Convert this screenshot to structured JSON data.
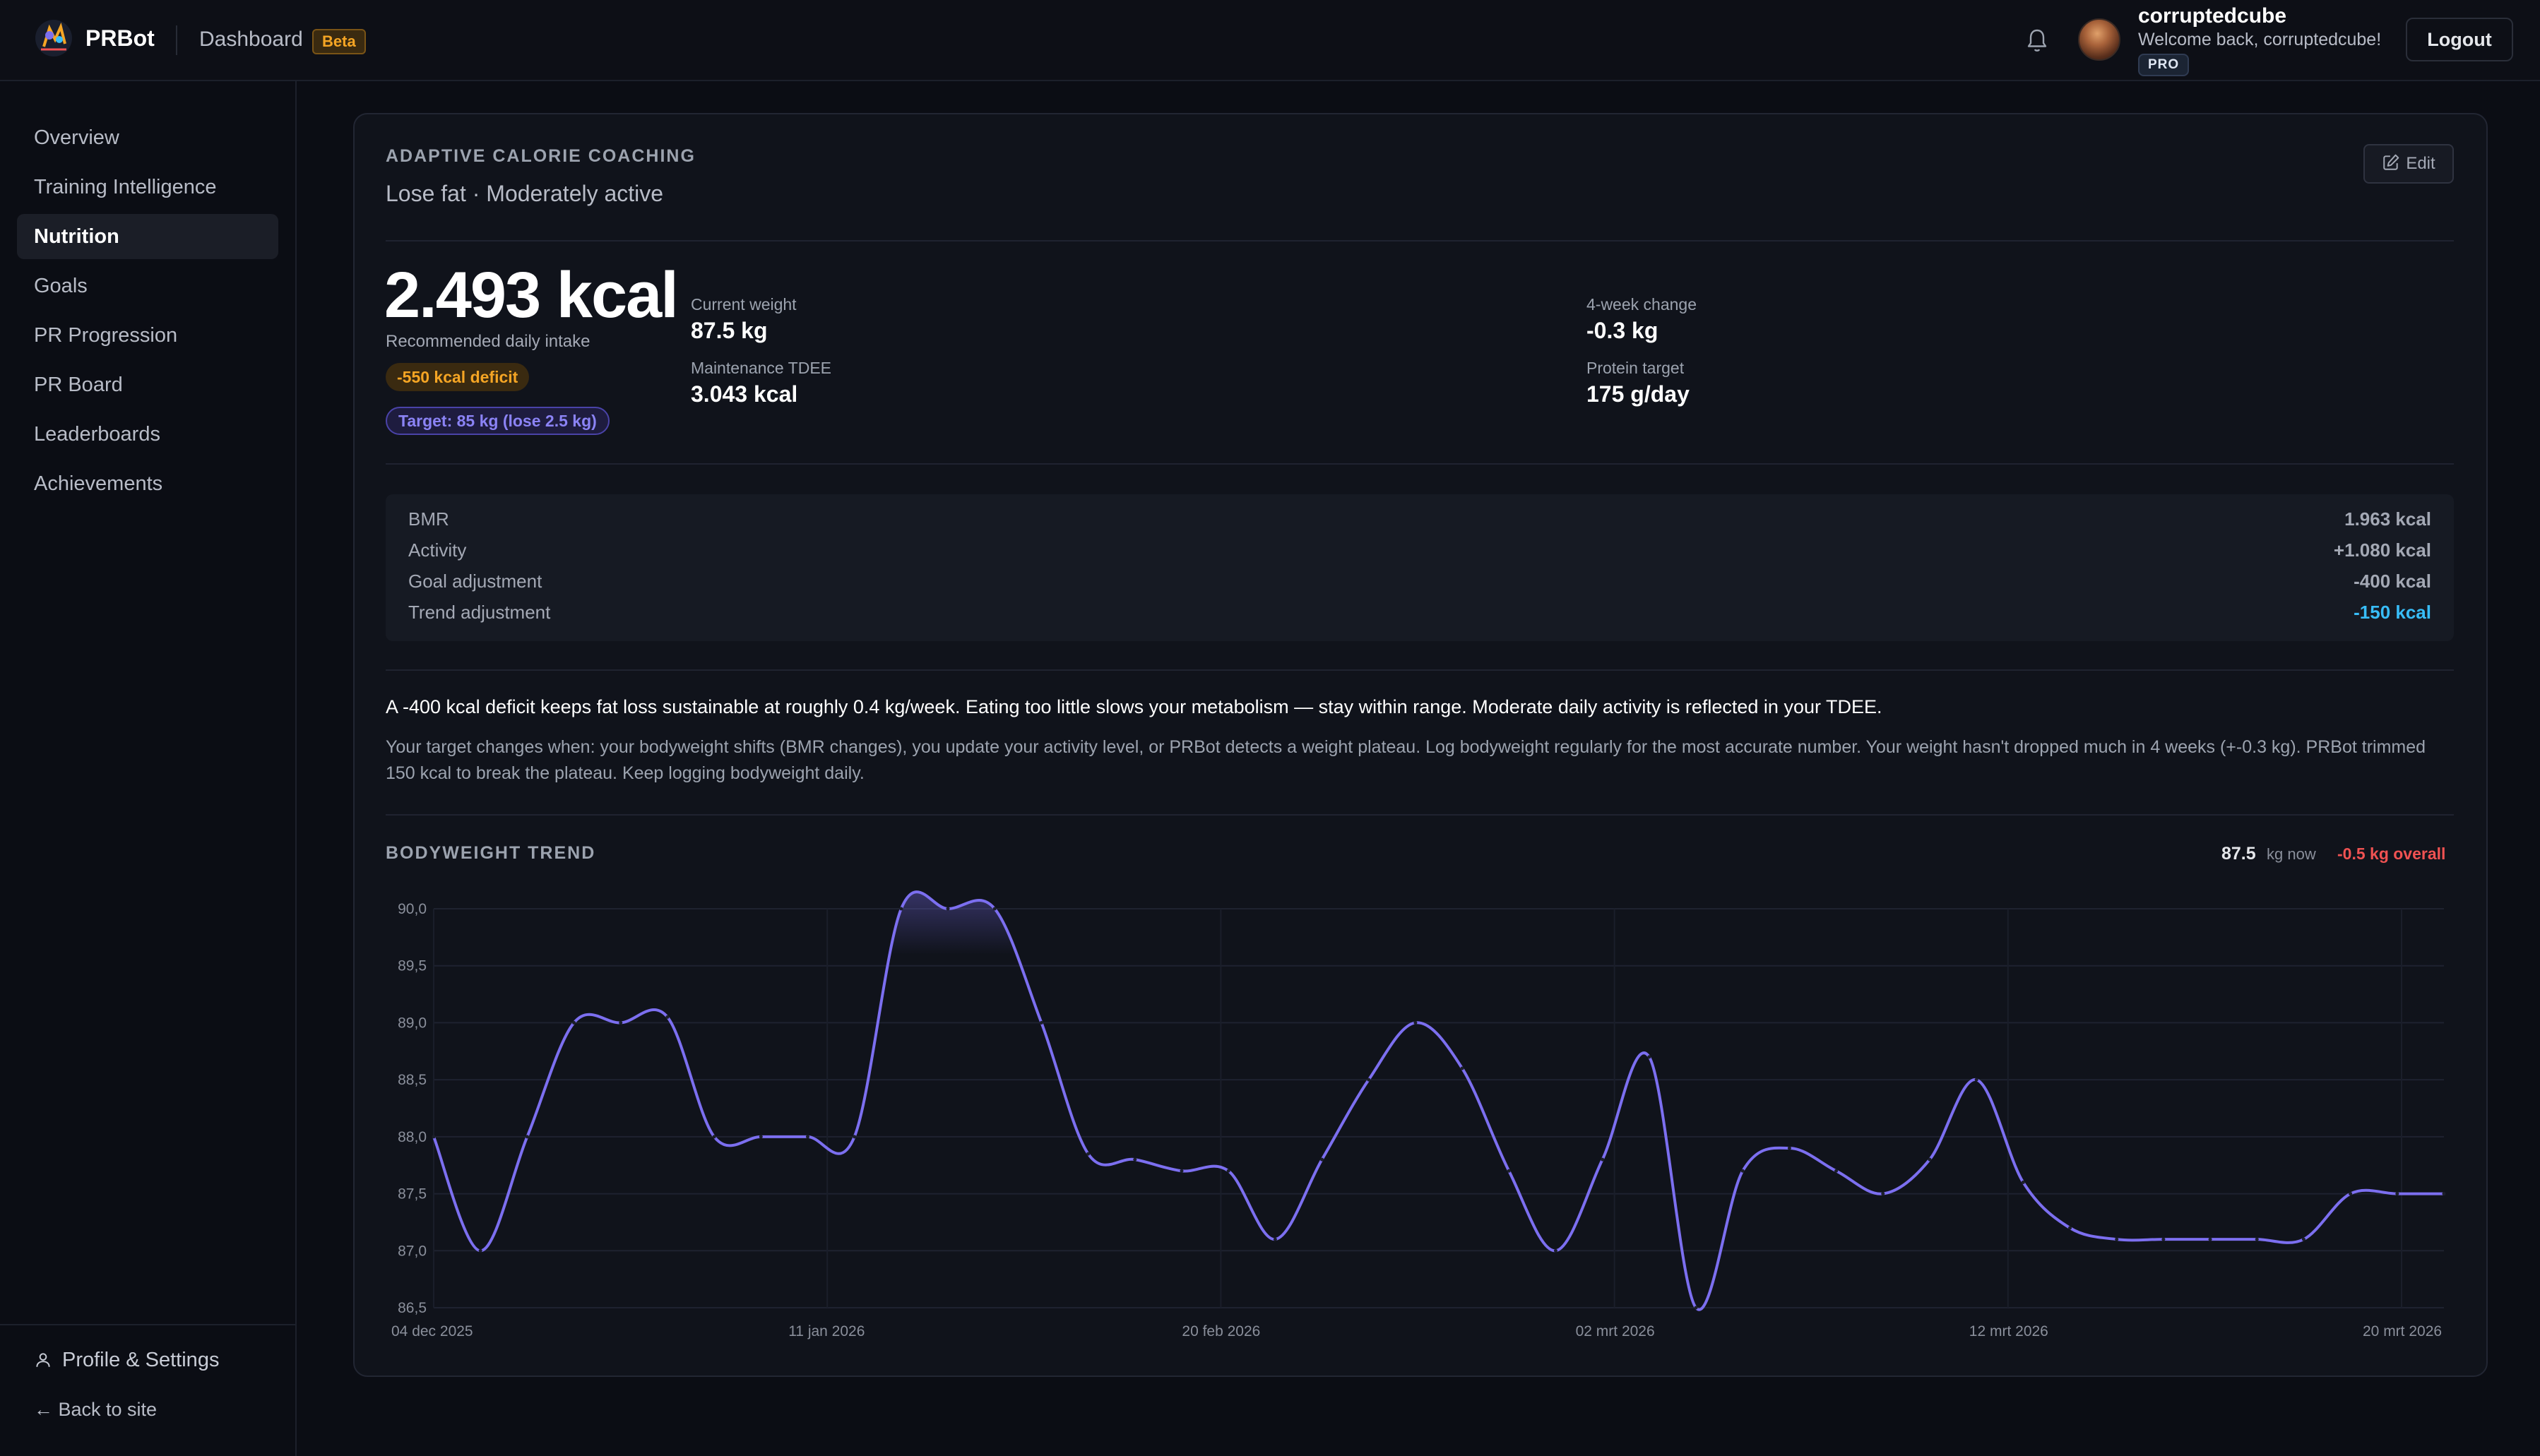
{
  "header": {
    "brand": "PRBot",
    "section": "Dashboard",
    "badge": "Beta",
    "user_name": "corruptedcube",
    "welcome": "Welcome back, corruptedcube!",
    "plan": "PRO",
    "logout_label": "Logout"
  },
  "sidebar": {
    "items": [
      {
        "label": "Overview"
      },
      {
        "label": "Training Intelligence"
      },
      {
        "label": "Nutrition",
        "active": true
      },
      {
        "label": "Goals"
      },
      {
        "label": "PR Progression"
      },
      {
        "label": "PR Board"
      },
      {
        "label": "Leaderboards"
      },
      {
        "label": "Achievements"
      }
    ],
    "profile_label": "Profile & Settings",
    "back_label": "← Back to site"
  },
  "coaching": {
    "eyebrow": "ADAPTIVE CALORIE COACHING",
    "subtitle": "Lose fat · Moderately active",
    "edit_label": "Edit",
    "recommended_kcal": "2.493 kcal",
    "recommended_label": "Recommended daily intake",
    "deficit_badge": "-550 kcal deficit",
    "target_badge": "Target: 85 kg (lose 2.5 kg)",
    "stats": {
      "current_weight_label": "Current weight",
      "current_weight": "87.5 kg",
      "tdee_label": "Maintenance TDEE",
      "tdee": "3.043 kcal",
      "change_label": "4-week change",
      "change": "-0.3 kg",
      "protein_label": "Protein target",
      "protein": "175 g/day"
    },
    "breakdown": [
      {
        "label": "BMR",
        "value": "1.963 kcal"
      },
      {
        "label": "Activity",
        "value": "+1.080 kcal"
      },
      {
        "label": "Goal adjustment",
        "value": "-400 kcal"
      },
      {
        "label": "Trend adjustment",
        "value": "-150 kcal",
        "accent": true
      }
    ],
    "explanation": "A -400 kcal deficit keeps fat loss sustainable at roughly 0.4 kg/week. Eating too little slows your metabolism — stay within range. Moderate daily activity is reflected in your TDEE.",
    "explanation_detail": "Your target changes when: your bodyweight shifts (BMR changes), you update your activity level, or PRBot detects a weight plateau. Log bodyweight regularly for the most accurate number. Your weight hasn't dropped much in 4 weeks (+-0.3 kg). PRBot trimmed 150 kcal to break the plateau. Keep logging bodyweight daily."
  },
  "trend": {
    "title": "BODYWEIGHT TREND",
    "now_value": "87.5",
    "now_unit": "kg now",
    "overall": "-0.5 kg overall"
  },
  "colors": {
    "accent": "#7c6ff0",
    "warning": "#f5a524",
    "info": "#38bdf8",
    "danger": "#f05252"
  },
  "chart_data": {
    "type": "line",
    "title": "BODYWEIGHT TREND",
    "xlabel": "",
    "ylabel": "",
    "ylim": [
      86.5,
      90.0
    ],
    "yticks": [
      "90,0",
      "89,5",
      "89,0",
      "88,5",
      "88,0",
      "87,5",
      "87,0",
      "86,5"
    ],
    "xticks": [
      "04 dec 2025",
      "11 jan 2026",
      "20 feb 2026",
      "02 mrt 2026",
      "12 mrt 2026",
      "20 mrt 2026"
    ],
    "x_start_label": "04 dec 2025",
    "grid": true,
    "series": [
      {
        "values": [
          88.0,
          87.0,
          88.0,
          89.0,
          89.0,
          89.05,
          88.0,
          88.0,
          88.0,
          88.0,
          90.0,
          90.0,
          90.0,
          89.0,
          87.85,
          87.8,
          87.7,
          87.7,
          87.1,
          87.8,
          88.5,
          89.0,
          88.6,
          87.7,
          87.0,
          87.8,
          88.7,
          86.5,
          87.7,
          87.9,
          87.7,
          87.5,
          87.8,
          88.5,
          87.6,
          87.2,
          87.1,
          87.1,
          87.1,
          87.1,
          87.1,
          87.5,
          87.5,
          87.5
        ]
      }
    ]
  }
}
